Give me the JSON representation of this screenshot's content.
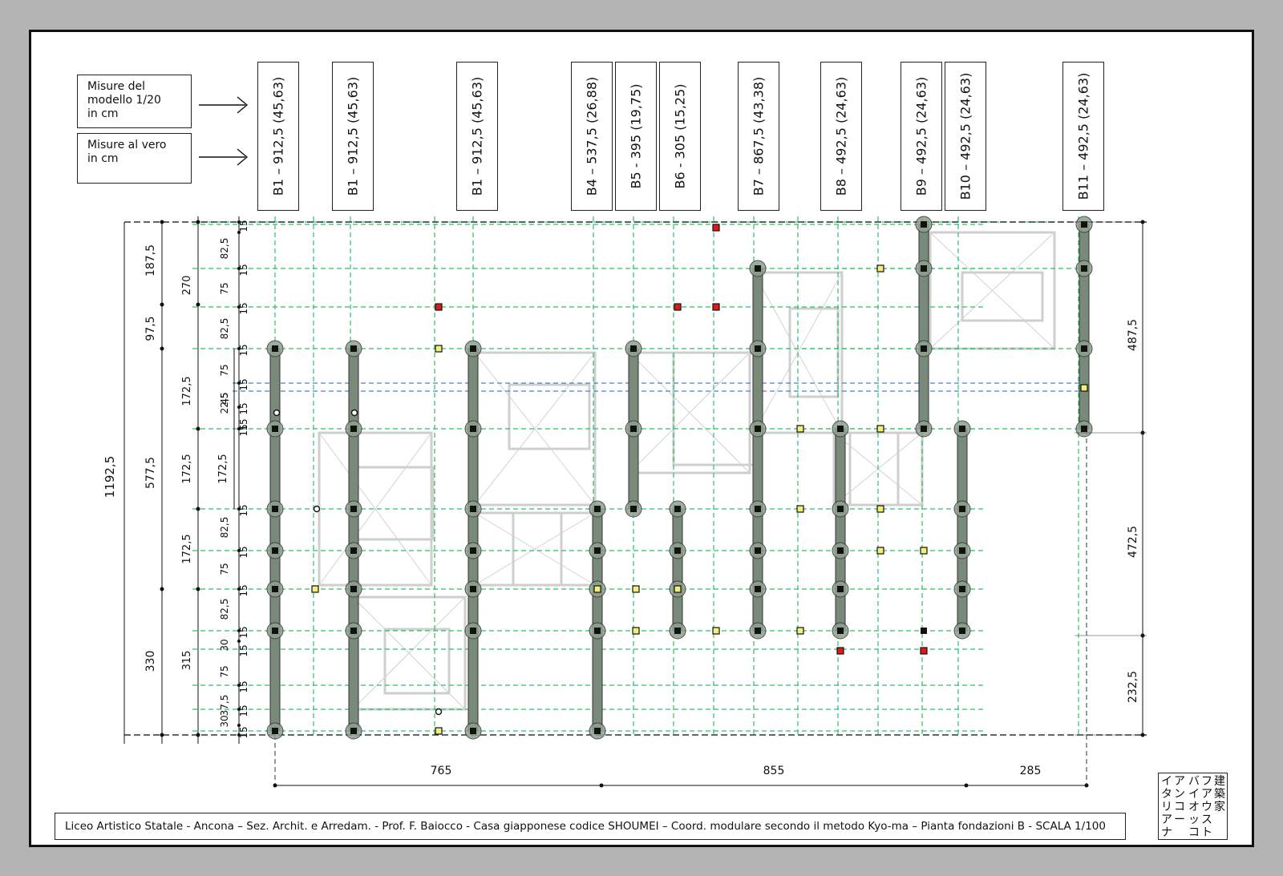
{
  "legend": {
    "model_label": "Misure del\nmodello 1/20\nin cm",
    "real_label": "Misure al vero\n in cm"
  },
  "beam_labels": [
    "B1 – 912,5 (45,63)",
    "B1 – 912,5 (45,63)",
    "B1 – 912,5 (45,63)",
    "B4 – 537,5 (26,88)",
    "B5 - 395 (19,75)",
    "B6 - 305 (15,25)",
    "B7 – 867,5 (43,38)",
    "B8 – 492,5 (24,63)",
    "B9 – 492,5 (24,63)",
    "B10 – 492,5 (24,63)",
    "B11 – 492,5 (24,63)"
  ],
  "dimensions": {
    "bottom": [
      "765",
      "855",
      "285"
    ],
    "right": [
      "487,5",
      "472,5",
      "232,5"
    ],
    "left_total": "1192,5",
    "left_main": [
      "187,5",
      "97,5",
      "577,5",
      "330"
    ],
    "left_second": [
      "270",
      "172,5",
      "172,5",
      "172,5",
      "315"
    ],
    "left_third": [
      "172,5"
    ],
    "left_fine": [
      "82,5",
      "75",
      "82,5",
      "75",
      "22,5",
      "45",
      "82,5",
      "75",
      "82,5",
      "30",
      "75",
      "37,5",
      "30"
    ],
    "left_fifteen": "15"
  },
  "title_block": "Liceo Artistico Statale - Ancona – Sez. Archit. e Arredam. - Prof. F. Baiocco - Casa giapponese codice SHOUMEI – Coord. modulare secondo il metodo Kyo-ma – Pianta fondazioni B - SCALA 1/100",
  "logo": {
    "col1": [
      "イ",
      "タ",
      "リ",
      "ア",
      "ナ"
    ],
    "col2": [
      "ア",
      "ン",
      "コ",
      "ー",
      ""
    ],
    "col3": [
      "バ",
      "イ",
      "オ",
      "ッ",
      "コ"
    ],
    "col4": [
      "フ",
      "ア",
      "ウ",
      "ス",
      "ト"
    ],
    "col5": [
      "建",
      "築",
      "家",
      "",
      ""
    ]
  },
  "colors": {
    "guide": "#2fbf6a",
    "beam": "#7a8a7a",
    "node_ring": "#8ea08e",
    "red_post": "#e01818",
    "yellow_post": "#f1ee7a",
    "blue_line": "#4a7fd0"
  }
}
